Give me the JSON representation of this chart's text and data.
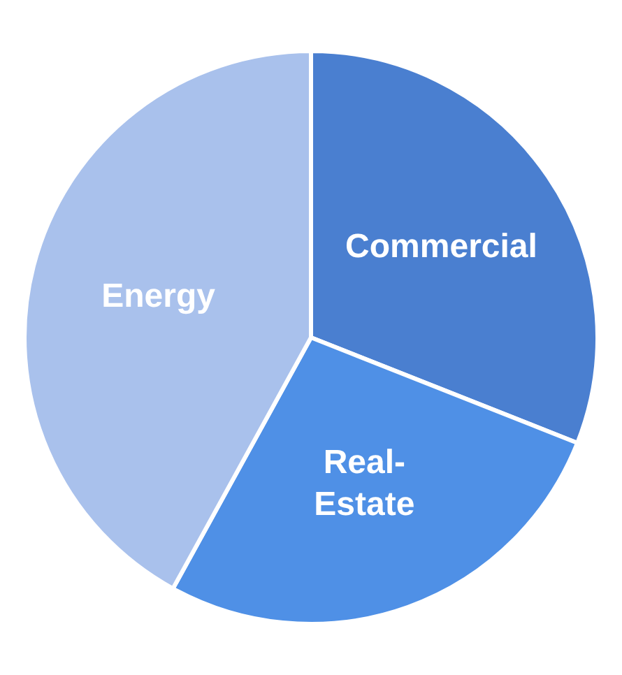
{
  "chart_data": {
    "type": "pie",
    "categories": [
      "Commercial",
      "Real-Estate",
      "Energy"
    ],
    "values": [
      31,
      27,
      42
    ],
    "colors": [
      "#4a7fd0",
      "#4f90e6",
      "#a9c1ec"
    ]
  }
}
